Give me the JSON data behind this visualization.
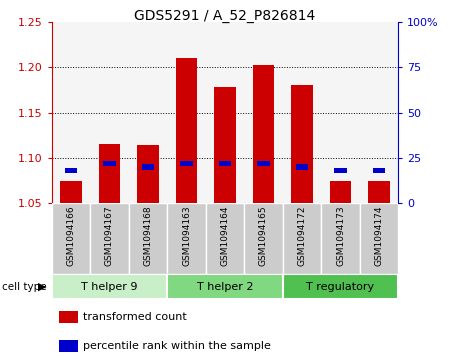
{
  "title": "GDS5291 / A_52_P826814",
  "samples": [
    "GSM1094166",
    "GSM1094167",
    "GSM1094168",
    "GSM1094163",
    "GSM1094164",
    "GSM1094165",
    "GSM1094172",
    "GSM1094173",
    "GSM1094174"
  ],
  "cell_types": [
    {
      "label": "T helper 9",
      "start": 0,
      "end": 3,
      "color": "#c8efc8"
    },
    {
      "label": "T helper 2",
      "start": 3,
      "end": 6,
      "color": "#80d880"
    },
    {
      "label": "T regulatory",
      "start": 6,
      "end": 9,
      "color": "#50c050"
    }
  ],
  "red_values": [
    1.075,
    1.115,
    1.114,
    1.21,
    1.178,
    1.202,
    1.18,
    1.075,
    1.075
  ],
  "blue_values": [
    18,
    22,
    20,
    22,
    22,
    22,
    20,
    18,
    18
  ],
  "ylim_left": [
    1.05,
    1.25
  ],
  "ylim_right": [
    0,
    100
  ],
  "yticks_left": [
    1.05,
    1.1,
    1.15,
    1.2,
    1.25
  ],
  "yticks_right": [
    0,
    25,
    50,
    75,
    100
  ],
  "ytick_labels_right": [
    "0",
    "25",
    "50",
    "75",
    "100%"
  ],
  "bar_bottom": 1.05,
  "bar_width": 0.55,
  "red_color": "#cc0000",
  "blue_color": "#0000cc",
  "grid_color": "#000000",
  "bg_color": "#ffffff",
  "sample_box_color": "#cccccc",
  "cell_type_label": "cell type",
  "legend_items": [
    "transformed count",
    "percentile rank within the sample"
  ],
  "legend_colors": [
    "#cc0000",
    "#0000cc"
  ],
  "main_axes": [
    0.115,
    0.44,
    0.77,
    0.5
  ],
  "sample_axes": [
    0.115,
    0.245,
    0.77,
    0.195
  ],
  "cell_axes": [
    0.115,
    0.175,
    0.77,
    0.07
  ],
  "legend_axes": [
    0.115,
    0.01,
    0.77,
    0.16
  ]
}
